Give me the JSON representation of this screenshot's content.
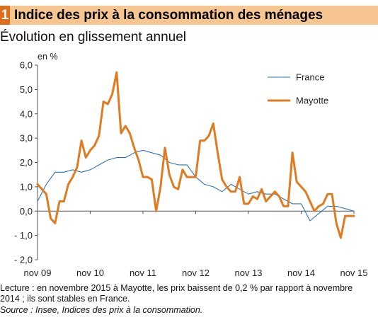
{
  "figure": {
    "number": "1",
    "title": "Indice des prix à la consommation des ménages",
    "subtitle": "Évolution en glissement annuel"
  },
  "chart_data": {
    "type": "line",
    "unit_label": "en %",
    "title": "Indice des prix à la consommation des ménages",
    "subtitle": "Évolution en glissement annuel",
    "ylim": [
      -2,
      6
    ],
    "y_ticks": [
      "- 2,0",
      "- 1,0",
      "0,0",
      "1,0",
      "2,0",
      "3,0",
      "4,0",
      "5,0",
      "6,0"
    ],
    "y_tick_values": [
      -2,
      -1,
      0,
      1,
      2,
      3,
      4,
      5,
      6
    ],
    "x_ticks": [
      "nov 09",
      "nov 10",
      "nov 11",
      "nov 12",
      "nov 13",
      "nov 14",
      "nov 15"
    ],
    "x_tick_values": [
      "2009-11",
      "2010-11",
      "2011-11",
      "2012-11",
      "2013-11",
      "2014-11",
      "2015-11"
    ],
    "legend_position": "top-right",
    "grid": false,
    "series": [
      {
        "name": "France",
        "color": "#2e75b6",
        "points": [
          [
            "2009-11",
            0.4
          ],
          [
            "2010-01",
            1.1
          ],
          [
            "2010-03",
            1.6
          ],
          [
            "2010-05",
            1.6
          ],
          [
            "2010-07",
            1.7
          ],
          [
            "2010-09",
            1.6
          ],
          [
            "2010-11",
            1.7
          ],
          [
            "2011-01",
            1.9
          ],
          [
            "2011-03",
            2.1
          ],
          [
            "2011-05",
            2.2
          ],
          [
            "2011-07",
            2.2
          ],
          [
            "2011-09",
            2.4
          ],
          [
            "2011-11",
            2.5
          ],
          [
            "2012-01",
            2.4
          ],
          [
            "2012-03",
            2.3
          ],
          [
            "2012-05",
            2.0
          ],
          [
            "2012-07",
            1.9
          ],
          [
            "2012-09",
            1.9
          ],
          [
            "2012-11",
            1.4
          ],
          [
            "2013-01",
            1.1
          ],
          [
            "2013-03",
            1.0
          ],
          [
            "2013-05",
            0.8
          ],
          [
            "2013-07",
            1.1
          ],
          [
            "2013-09",
            0.9
          ],
          [
            "2013-11",
            0.7
          ],
          [
            "2014-01",
            0.8
          ],
          [
            "2014-03",
            0.7
          ],
          [
            "2014-05",
            0.7
          ],
          [
            "2014-07",
            0.5
          ],
          [
            "2014-09",
            0.3
          ],
          [
            "2014-11",
            0.3
          ],
          [
            "2015-01",
            -0.4
          ],
          [
            "2015-03",
            -0.1
          ],
          [
            "2015-05",
            0.2
          ],
          [
            "2015-07",
            0.2
          ],
          [
            "2015-09",
            0.1
          ],
          [
            "2015-11",
            0.0
          ]
        ]
      },
      {
        "name": "Mayotte",
        "color": "#e07b1f",
        "points": [
          [
            "2009-11",
            1.1
          ],
          [
            "2009-12",
            0.9
          ],
          [
            "2010-01",
            0.7
          ],
          [
            "2010-02",
            -0.3
          ],
          [
            "2010-03",
            -0.5
          ],
          [
            "2010-04",
            0.4
          ],
          [
            "2010-05",
            0.4
          ],
          [
            "2010-06",
            1.1
          ],
          [
            "2010-07",
            1.4
          ],
          [
            "2010-08",
            1.8
          ],
          [
            "2010-09",
            2.9
          ],
          [
            "2010-10",
            2.2
          ],
          [
            "2010-11",
            2.5
          ],
          [
            "2010-12",
            2.7
          ],
          [
            "2011-01",
            3.1
          ],
          [
            "2011-02",
            4.5
          ],
          [
            "2011-03",
            4.4
          ],
          [
            "2011-04",
            4.8
          ],
          [
            "2011-05",
            5.7
          ],
          [
            "2011-06",
            3.2
          ],
          [
            "2011-07",
            3.5
          ],
          [
            "2011-08",
            3.2
          ],
          [
            "2011-09",
            2.6
          ],
          [
            "2011-10",
            2.1
          ],
          [
            "2011-11",
            1.4
          ],
          [
            "2011-12",
            1.4
          ],
          [
            "2012-01",
            1.3
          ],
          [
            "2012-02",
            0.0
          ],
          [
            "2012-03",
            1.0
          ],
          [
            "2012-04",
            2.6
          ],
          [
            "2012-05",
            1.5
          ],
          [
            "2012-06",
            1.0
          ],
          [
            "2012-07",
            0.9
          ],
          [
            "2012-08",
            1.7
          ],
          [
            "2012-09",
            1.4
          ],
          [
            "2012-10",
            1.4
          ],
          [
            "2012-11",
            1.4
          ],
          [
            "2012-12",
            2.9
          ],
          [
            "2013-01",
            2.9
          ],
          [
            "2013-02",
            3.1
          ],
          [
            "2013-03",
            3.6
          ],
          [
            "2013-04",
            2.4
          ],
          [
            "2013-05",
            1.3
          ],
          [
            "2013-06",
            1.0
          ],
          [
            "2013-07",
            0.8
          ],
          [
            "2013-08",
            0.8
          ],
          [
            "2013-09",
            1.4
          ],
          [
            "2013-10",
            0.3
          ],
          [
            "2013-11",
            0.3
          ],
          [
            "2013-12",
            0.6
          ],
          [
            "2014-01",
            0.5
          ],
          [
            "2014-02",
            0.9
          ],
          [
            "2014-03",
            0.4
          ],
          [
            "2014-04",
            0.6
          ],
          [
            "2014-05",
            0.8
          ],
          [
            "2014-06",
            0.6
          ],
          [
            "2014-07",
            0.2
          ],
          [
            "2014-08",
            0.2
          ],
          [
            "2014-09",
            2.4
          ],
          [
            "2014-10",
            1.2
          ],
          [
            "2014-11",
            1.0
          ],
          [
            "2014-12",
            0.8
          ],
          [
            "2015-01",
            0.4
          ],
          [
            "2015-02",
            0.0
          ],
          [
            "2015-03",
            0.2
          ],
          [
            "2015-04",
            0.3
          ],
          [
            "2015-05",
            0.7
          ],
          [
            "2015-06",
            0.7
          ],
          [
            "2015-07",
            -0.5
          ],
          [
            "2015-08",
            -1.1
          ],
          [
            "2015-09",
            -0.2
          ],
          [
            "2015-10",
            -0.2
          ],
          [
            "2015-11",
            -0.2
          ]
        ]
      }
    ]
  },
  "footnotes": {
    "lecture_line1": "Lecture : en novembre 2015 à Mayotte, les prix baissent de 0,2 % par rapport à novembre",
    "lecture_line2": "2014 ; ils sont stables  en France.",
    "source": "Source : Insee, Indices des prix à la consommation."
  }
}
